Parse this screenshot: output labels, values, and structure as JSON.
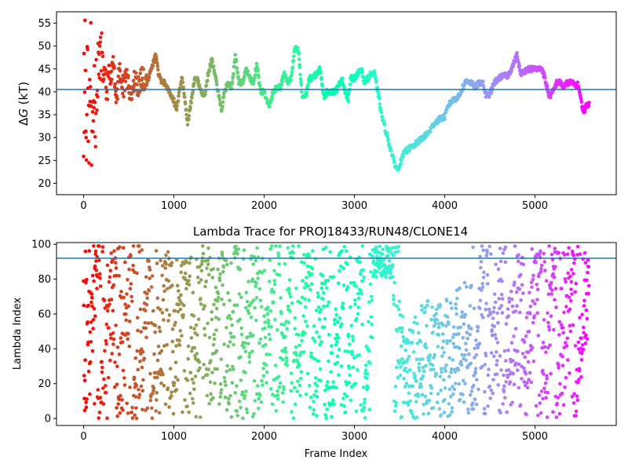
{
  "chart_data": [
    {
      "type": "scatter",
      "title": "",
      "xlabel": "",
      "ylabel_main": "ΔG",
      "ylabel_italic": "G",
      "ylabel_delta": "Δ",
      "ylabel_unit": " (kT)",
      "xlim": [
        -300,
        5900
      ],
      "ylim": [
        17.5,
        57.5
      ],
      "xticks": [
        0,
        1000,
        2000,
        3000,
        4000,
        5000
      ],
      "yticks": [
        20,
        25,
        30,
        35,
        40,
        45,
        50,
        55
      ],
      "hline": {
        "y": 40.5,
        "color": "#1f77b4"
      },
      "colormap": "rainbow",
      "x_max": 5600,
      "trace": [
        [
          0,
          32
        ],
        [
          5,
          50
        ],
        [
          10,
          20
        ],
        [
          15,
          55
        ],
        [
          20,
          44
        ],
        [
          25,
          35
        ],
        [
          30,
          24
        ],
        [
          40,
          50
        ],
        [
          50,
          36
        ],
        [
          60,
          28
        ],
        [
          70,
          43
        ],
        [
          80,
          50
        ],
        [
          90,
          25
        ],
        [
          100,
          35
        ],
        [
          110,
          32
        ],
        [
          120,
          46
        ],
        [
          130,
          22
        ],
        [
          140,
          47
        ],
        [
          150,
          33
        ],
        [
          160,
          48
        ],
        [
          180,
          44
        ],
        [
          200,
          51
        ],
        [
          220,
          42
        ],
        [
          240,
          45
        ],
        [
          260,
          38
        ],
        [
          280,
          47
        ],
        [
          300,
          41
        ],
        [
          330,
          48
        ],
        [
          360,
          37
        ],
        [
          400,
          46
        ],
        [
          440,
          41
        ],
        [
          480,
          43
        ],
        [
          520,
          39
        ],
        [
          560,
          43
        ],
        [
          600,
          41
        ],
        [
          650,
          43
        ],
        [
          700,
          42
        ],
        [
          750,
          45
        ],
        [
          800,
          48
        ],
        [
          830,
          44
        ],
        [
          860,
          42
        ],
        [
          900,
          42
        ],
        [
          950,
          40
        ],
        [
          1000,
          38
        ],
        [
          1030,
          36
        ],
        [
          1060,
          40
        ],
        [
          1090,
          43
        ],
        [
          1120,
          39
        ],
        [
          1150,
          33
        ],
        [
          1170,
          35
        ],
        [
          1200,
          39
        ],
        [
          1230,
          43
        ],
        [
          1260,
          43
        ],
        [
          1300,
          40
        ],
        [
          1340,
          39
        ],
        [
          1380,
          44
        ],
        [
          1420,
          47
        ],
        [
          1460,
          43
        ],
        [
          1500,
          39
        ],
        [
          1530,
          36
        ],
        [
          1560,
          40
        ],
        [
          1600,
          42
        ],
        [
          1640,
          41
        ],
        [
          1680,
          48
        ],
        [
          1720,
          42
        ],
        [
          1760,
          42
        ],
        [
          1800,
          45
        ],
        [
          1840,
          43
        ],
        [
          1880,
          42
        ],
        [
          1920,
          46
        ],
        [
          1960,
          40
        ],
        [
          2000,
          40
        ],
        [
          2030,
          38
        ],
        [
          2060,
          37
        ],
        [
          2100,
          40
        ],
        [
          2140,
          41
        ],
        [
          2180,
          41
        ],
        [
          2220,
          44
        ],
        [
          2260,
          42
        ],
        [
          2300,
          43
        ],
        [
          2340,
          49.5
        ],
        [
          2380,
          49
        ],
        [
          2420,
          39
        ],
        [
          2460,
          39
        ],
        [
          2500,
          43
        ],
        [
          2540,
          43
        ],
        [
          2580,
          44
        ],
        [
          2620,
          45
        ],
        [
          2660,
          39
        ],
        [
          2700,
          40
        ],
        [
          2740,
          40
        ],
        [
          2780,
          40
        ],
        [
          2820,
          41
        ],
        [
          2860,
          43
        ],
        [
          2900,
          40
        ],
        [
          2930,
          38
        ],
        [
          2960,
          43
        ],
        [
          3000,
          43
        ],
        [
          3040,
          44
        ],
        [
          3080,
          45
        ],
        [
          3110,
          42
        ],
        [
          3150,
          43
        ],
        [
          3190,
          44
        ],
        [
          3220,
          44
        ],
        [
          3260,
          40
        ],
        [
          3300,
          35
        ],
        [
          3340,
          32
        ],
        [
          3380,
          29
        ],
        [
          3420,
          26
        ],
        [
          3450,
          24
        ],
        [
          3480,
          23
        ],
        [
          3520,
          25
        ],
        [
          3560,
          27
        ],
        [
          3600,
          27.5
        ],
        [
          3650,
          28
        ],
        [
          3700,
          29
        ],
        [
          3760,
          30
        ],
        [
          3820,
          31
        ],
        [
          3880,
          33
        ],
        [
          3940,
          34
        ],
        [
          4000,
          34.5
        ],
        [
          4040,
          37
        ],
        [
          4080,
          38
        ],
        [
          4120,
          38.5
        ],
        [
          4160,
          39
        ],
        [
          4200,
          41
        ],
        [
          4240,
          42.5
        ],
        [
          4290,
          42
        ],
        [
          4340,
          41
        ],
        [
          4380,
          42
        ],
        [
          4420,
          42
        ],
        [
          4460,
          39
        ],
        [
          4500,
          39.5
        ],
        [
          4550,
          42
        ],
        [
          4600,
          43
        ],
        [
          4650,
          43.5
        ],
        [
          4700,
          43.5
        ],
        [
          4760,
          46
        ],
        [
          4800,
          48
        ],
        [
          4840,
          44
        ],
        [
          4880,
          44.5
        ],
        [
          4920,
          45
        ],
        [
          4960,
          45
        ],
        [
          5000,
          45
        ],
        [
          5040,
          45
        ],
        [
          5080,
          45
        ],
        [
          5120,
          42
        ],
        [
          5160,
          39
        ],
        [
          5200,
          40
        ],
        [
          5240,
          42
        ],
        [
          5280,
          42
        ],
        [
          5320,
          41
        ],
        [
          5360,
          42
        ],
        [
          5400,
          42
        ],
        [
          5440,
          41.5
        ],
        [
          5480,
          41.5
        ],
        [
          5510,
          38
        ],
        [
          5540,
          35.5
        ],
        [
          5570,
          37
        ],
        [
          5600,
          37.5
        ]
      ]
    },
    {
      "type": "scatter",
      "title": "Lambda Trace for PROJ18433/RUN48/CLONE14",
      "xlabel": "Frame Index",
      "ylabel": "Lambda Index",
      "xlim": [
        -300,
        5900
      ],
      "ylim": [
        -4,
        101
      ],
      "xticks": [
        0,
        1000,
        2000,
        3000,
        4000,
        5000
      ],
      "yticks": [
        0,
        20,
        40,
        60,
        80,
        100
      ],
      "hline": {
        "y": 92,
        "color": "#1f77b4"
      },
      "colormap": "rainbow",
      "x_max": 5600,
      "y_range": [
        0,
        99
      ],
      "dense_cluster": {
        "x_range": [
          3200,
          3430
        ],
        "y_range": [
          80,
          99
        ]
      },
      "gap_floor": {
        "x_range": [
          3500,
          4300
        ],
        "y_start": 60,
        "y_end": 80
      }
    }
  ]
}
